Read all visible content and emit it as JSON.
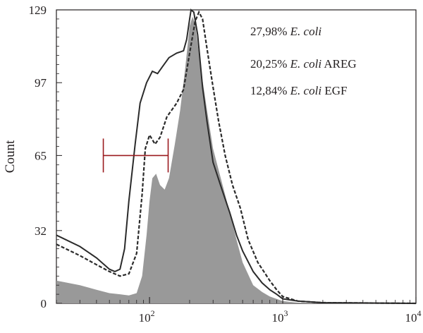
{
  "chart_data": {
    "type": "area",
    "title": "",
    "xlabel": "",
    "ylabel": "Count",
    "x_scale": "log",
    "xlim": [
      20,
      10000
    ],
    "ylim": [
      0,
      129
    ],
    "y_ticks": [
      "0",
      "32",
      "65",
      "97",
      "129"
    ],
    "x_ticks": [
      {
        "value": 100,
        "base": "10",
        "exp": "2"
      },
      {
        "value": 1000,
        "base": "10",
        "exp": "3"
      },
      {
        "value": 10000,
        "base": "10",
        "exp": "4"
      }
    ],
    "annotations": [
      {
        "label": "27,98% ",
        "italic": "E. coli",
        "suffix": ""
      },
      {
        "label": "20,25% ",
        "italic": "E. coli",
        "suffix": " AREG"
      },
      {
        "label": "12,84% ",
        "italic": "E. coli",
        "suffix": " EGF"
      }
    ],
    "gate": {
      "x_start": 45,
      "x_end": 138,
      "y": 65,
      "color": "#9b1b1f"
    },
    "series": [
      {
        "style": "filled",
        "color": "#999999",
        "points": [
          [
            20,
            10
          ],
          [
            30,
            8
          ],
          [
            40,
            6
          ],
          [
            50,
            4.5
          ],
          [
            60,
            4
          ],
          [
            70,
            3.5
          ],
          [
            80,
            4.5
          ],
          [
            88,
            12
          ],
          [
            95,
            30
          ],
          [
            100,
            45
          ],
          [
            105,
            55
          ],
          [
            112,
            57
          ],
          [
            120,
            52
          ],
          [
            130,
            50
          ],
          [
            140,
            55
          ],
          [
            155,
            70
          ],
          [
            170,
            85
          ],
          [
            185,
            103
          ],
          [
            200,
            122
          ],
          [
            210,
            126
          ],
          [
            220,
            123
          ],
          [
            240,
            105
          ],
          [
            270,
            85
          ],
          [
            300,
            68
          ],
          [
            350,
            53
          ],
          [
            400,
            40
          ],
          [
            450,
            28
          ],
          [
            500,
            18
          ],
          [
            600,
            8
          ],
          [
            700,
            5
          ],
          [
            800,
            3
          ],
          [
            1000,
            1
          ],
          [
            1300,
            0.3
          ],
          [
            2000,
            0
          ],
          [
            10000,
            0
          ]
        ]
      },
      {
        "style": "solid",
        "color": "#2b2b2b",
        "points": [
          [
            20,
            30
          ],
          [
            30,
            25
          ],
          [
            40,
            20
          ],
          [
            50,
            15
          ],
          [
            55,
            14
          ],
          [
            60,
            15
          ],
          [
            65,
            24
          ],
          [
            70,
            45
          ],
          [
            78,
            70
          ],
          [
            85,
            88
          ],
          [
            95,
            97
          ],
          [
            105,
            102
          ],
          [
            115,
            101
          ],
          [
            125,
            104
          ],
          [
            140,
            108
          ],
          [
            160,
            110
          ],
          [
            180,
            111
          ],
          [
            190,
            116
          ],
          [
            200,
            125
          ],
          [
            205,
            129
          ],
          [
            215,
            128
          ],
          [
            230,
            118
          ],
          [
            250,
            95
          ],
          [
            270,
            80
          ],
          [
            300,
            62
          ],
          [
            350,
            50
          ],
          [
            400,
            40
          ],
          [
            450,
            30
          ],
          [
            500,
            23
          ],
          [
            600,
            14
          ],
          [
            700,
            9
          ],
          [
            800,
            6
          ],
          [
            900,
            4
          ],
          [
            1000,
            2
          ],
          [
            1300,
            1
          ],
          [
            2000,
            0.3
          ],
          [
            10000,
            0
          ]
        ]
      },
      {
        "style": "dashed",
        "color": "#2b2b2b",
        "points": [
          [
            20,
            26
          ],
          [
            30,
            21
          ],
          [
            40,
            17
          ],
          [
            50,
            14
          ],
          [
            60,
            12
          ],
          [
            70,
            13
          ],
          [
            80,
            22
          ],
          [
            88,
            48
          ],
          [
            93,
            68
          ],
          [
            100,
            74
          ],
          [
            110,
            70
          ],
          [
            120,
            73
          ],
          [
            135,
            82
          ],
          [
            160,
            88
          ],
          [
            180,
            94
          ],
          [
            200,
            110
          ],
          [
            220,
            124
          ],
          [
            235,
            128
          ],
          [
            250,
            125
          ],
          [
            270,
            112
          ],
          [
            300,
            95
          ],
          [
            330,
            80
          ],
          [
            370,
            65
          ],
          [
            420,
            52
          ],
          [
            480,
            42
          ],
          [
            550,
            28
          ],
          [
            650,
            18
          ],
          [
            800,
            10
          ],
          [
            900,
            6
          ],
          [
            1000,
            3
          ],
          [
            1300,
            1
          ],
          [
            2000,
            0.3
          ],
          [
            10000,
            0
          ]
        ]
      }
    ]
  }
}
